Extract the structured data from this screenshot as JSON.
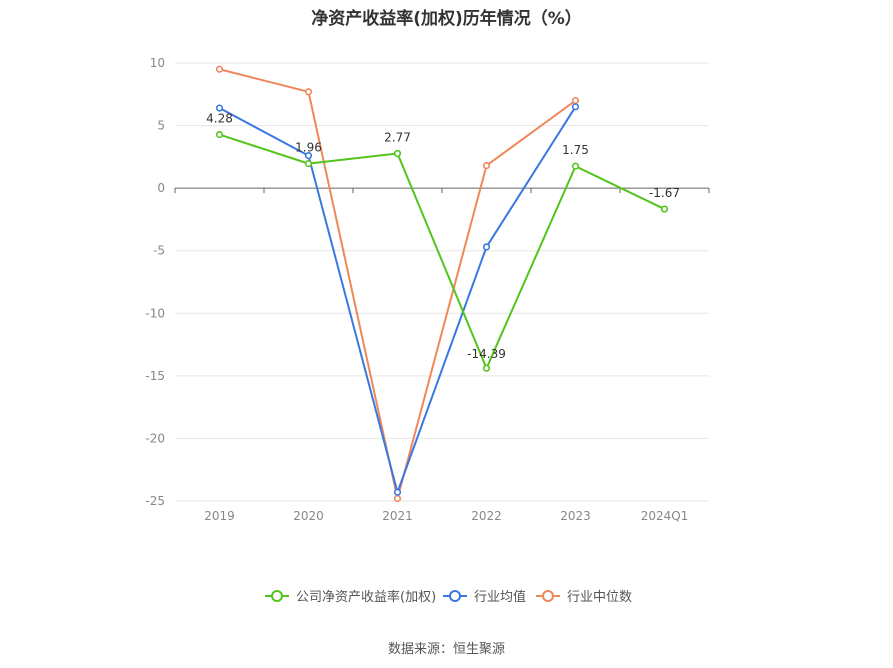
{
  "title": "净资产收益率(加权)历年情况（%）",
  "source": "数据来源：恒生聚源",
  "chart_data": {
    "type": "line",
    "title": "净资产收益率(加权)历年情况（%）",
    "categories": [
      "2019",
      "2020",
      "2021",
      "2022",
      "2023",
      "2024Q1"
    ],
    "ylim": [
      -25,
      10
    ],
    "yticks": [
      10,
      5,
      0,
      -5,
      -10,
      -15,
      -20,
      -25
    ],
    "grid": true,
    "legend_position": "bottom",
    "series": [
      {
        "name": "公司净资产收益率(加权)",
        "color": "#52c41a",
        "values": [
          4.28,
          1.96,
          2.77,
          -14.39,
          1.75,
          -1.67
        ],
        "labels": [
          "4.28",
          "1.96",
          "2.77",
          "-14.39",
          "1.75",
          "-1.67"
        ]
      },
      {
        "name": "行业均值",
        "color": "#3a78e0",
        "values": [
          6.4,
          2.6,
          -24.3,
          -4.7,
          6.5,
          null
        ]
      },
      {
        "name": "行业中位数",
        "color": "#f0875a",
        "values": [
          9.5,
          7.7,
          -24.8,
          1.8,
          7.0,
          null
        ]
      }
    ]
  }
}
